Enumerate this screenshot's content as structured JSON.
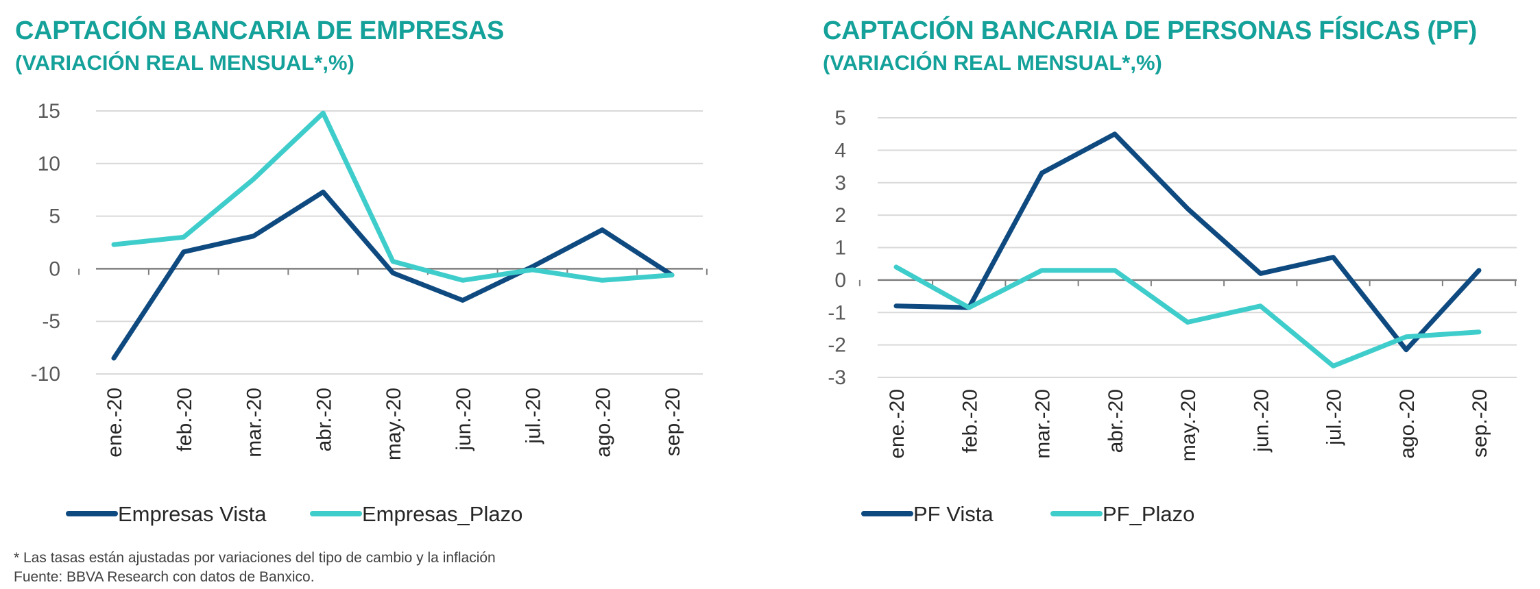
{
  "colors": {
    "accent": "#14a19a",
    "dark_series": "#0e4a80",
    "light_series": "#3ecdcb",
    "grid": "#d9d9d9",
    "axis": "#7f7f7f"
  },
  "chart_data": [
    {
      "type": "line",
      "title": "CAPTACIÓN BANCARIA DE EMPRESAS",
      "subtitle": "(VARIACIÓN REAL MENSUAL*,%)",
      "categories": [
        "ene.-20",
        "feb.-20",
        "mar.-20",
        "abr.-20",
        "may.-20",
        "jun.-20",
        "jul.-20",
        "ago.-20",
        "sep.-20"
      ],
      "yticks": [
        "15",
        "10",
        "5",
        "0",
        "-5",
        "-10"
      ],
      "ylim": [
        -10,
        15
      ],
      "grid": true,
      "legend": "bottom",
      "series": [
        {
          "name": "Empresas Vista",
          "color": "#0e4a80",
          "values": [
            -8.5,
            1.6,
            3.1,
            7.3,
            -0.4,
            -3.0,
            0.2,
            3.7,
            -0.6
          ]
        },
        {
          "name": "Empresas_Plazo",
          "color": "#3ecdcb",
          "values": [
            2.3,
            3.0,
            8.5,
            14.8,
            0.7,
            -1.1,
            -0.1,
            -1.1,
            -0.6
          ]
        }
      ]
    },
    {
      "type": "line",
      "title": "CAPTACIÓN BANCARIA DE PERSONAS FÍSICAS (PF)",
      "subtitle": "(VARIACIÓN REAL MENSUAL*,%)",
      "categories": [
        "ene.-20",
        "feb.-20",
        "mar.-20",
        "abr.-20",
        "may.-20",
        "jun.-20",
        "jul.-20",
        "ago.-20",
        "sep.-20"
      ],
      "yticks": [
        "5",
        "4",
        "3",
        "2",
        "1",
        "0",
        "-1",
        "-2",
        "-3"
      ],
      "ylim": [
        -3,
        5
      ],
      "grid": true,
      "legend": "bottom",
      "series": [
        {
          "name": "PF Vista",
          "color": "#0e4a80",
          "values": [
            -0.8,
            -0.85,
            3.3,
            4.5,
            2.2,
            0.2,
            0.7,
            -2.15,
            0.3
          ]
        },
        {
          "name": "PF_Plazo",
          "color": "#3ecdcb",
          "values": [
            0.4,
            -0.85,
            0.3,
            0.3,
            -1.3,
            -0.8,
            -2.65,
            -1.75,
            -1.6
          ]
        }
      ]
    }
  ],
  "footnotes": [
    "* Las tasas están ajustadas por variaciones del tipo de cambio y la inflación",
    "Fuente: BBVA Research con datos de Banxico."
  ]
}
